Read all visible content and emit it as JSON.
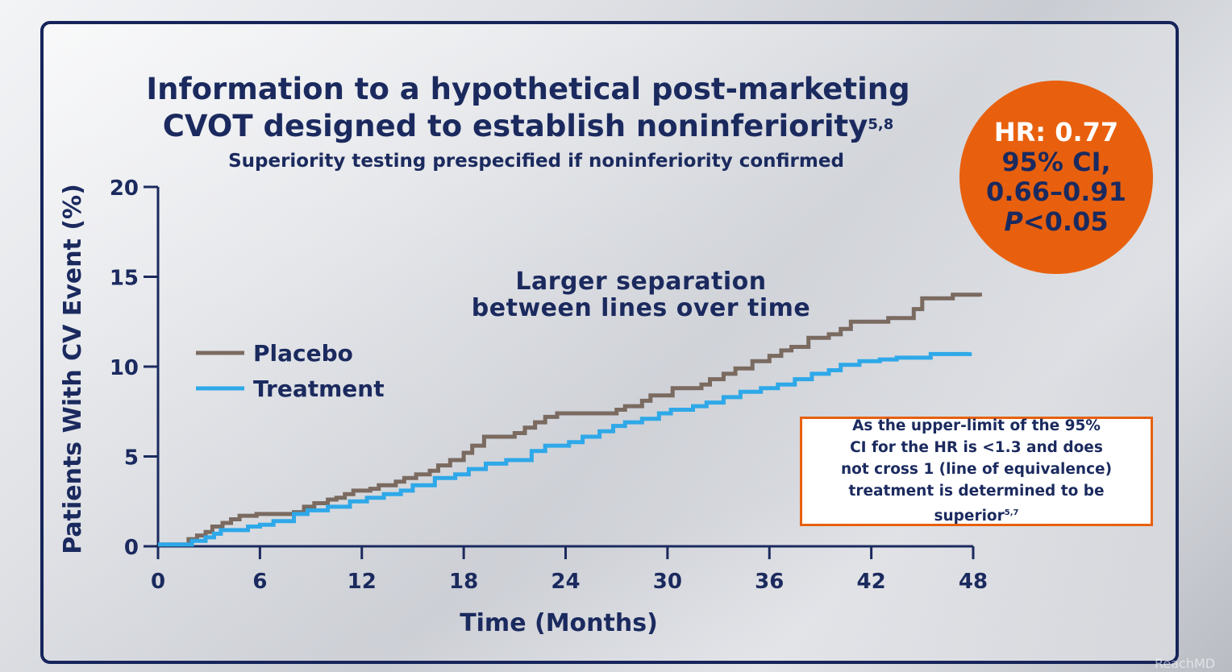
{
  "title_line1": "Information to a hypothetical post-marketing",
  "title_line2": "CVOT designed to establish noninferiority",
  "title_sup": "5,8",
  "subtitle": "Superiority testing prespecified if noninferiority confirmed",
  "annotation_line1": "Larger separation",
  "annotation_line2": "between lines over time",
  "hr_badge": {
    "hr": "HR: 0.77",
    "ci_label": "95% CI,",
    "ci_range": "0.66–0.91",
    "p_letter": "P",
    "p_value": "<0.05"
  },
  "note_box": {
    "line1": "As the upper-limit of the 95%",
    "line2": "CI for the HR is <1.3 and does",
    "line3": "not cross 1 (line of equivalence)",
    "line4": "treatment is determined to be superior",
    "sup": "5,7"
  },
  "watermark": "ReachMD",
  "colors": {
    "navy": "#1b2a5e",
    "placebo": "#7a6a60",
    "treatment": "#2ea8e8",
    "accent_orange": "#e8600e"
  },
  "chart_data": {
    "type": "line",
    "xlabel": "Time (Months)",
    "ylabel": "Patients With CV Event (%)",
    "xlim": [
      0,
      48
    ],
    "ylim": [
      0,
      20
    ],
    "x_ticks": [
      0,
      6,
      12,
      18,
      24,
      30,
      36,
      42,
      48
    ],
    "y_ticks": [
      0,
      5,
      10,
      15,
      20
    ],
    "legend_position": "left-middle",
    "series": [
      {
        "name": "Placebo",
        "color": "#7a6a60",
        "points": [
          [
            0,
            0.1
          ],
          [
            1.5,
            0.1
          ],
          [
            1.8,
            0.4
          ],
          [
            2.3,
            0.6
          ],
          [
            2.8,
            0.8
          ],
          [
            3.2,
            1.1
          ],
          [
            3.8,
            1.3
          ],
          [
            4.3,
            1.5
          ],
          [
            4.8,
            1.7
          ],
          [
            5.8,
            1.8
          ],
          [
            7.0,
            1.8
          ],
          [
            8.0,
            1.9
          ],
          [
            8.6,
            2.2
          ],
          [
            9.2,
            2.4
          ],
          [
            10.0,
            2.6
          ],
          [
            10.5,
            2.7
          ],
          [
            11.0,
            2.9
          ],
          [
            11.5,
            3.1
          ],
          [
            12.5,
            3.2
          ],
          [
            13.0,
            3.4
          ],
          [
            14.0,
            3.6
          ],
          [
            14.5,
            3.8
          ],
          [
            15.2,
            4.0
          ],
          [
            16.0,
            4.2
          ],
          [
            16.5,
            4.5
          ],
          [
            17.2,
            4.8
          ],
          [
            18.0,
            5.2
          ],
          [
            18.5,
            5.6
          ],
          [
            19.2,
            6.1
          ],
          [
            21.0,
            6.3
          ],
          [
            21.6,
            6.6
          ],
          [
            22.2,
            6.9
          ],
          [
            22.8,
            7.2
          ],
          [
            23.5,
            7.4
          ],
          [
            26.5,
            7.4
          ],
          [
            27.0,
            7.6
          ],
          [
            27.5,
            7.8
          ],
          [
            28.5,
            8.1
          ],
          [
            29.0,
            8.4
          ],
          [
            30.3,
            8.8
          ],
          [
            32.0,
            9.0
          ],
          [
            32.5,
            9.3
          ],
          [
            33.3,
            9.6
          ],
          [
            34.0,
            9.9
          ],
          [
            35.0,
            10.3
          ],
          [
            36.0,
            10.6
          ],
          [
            36.7,
            10.9
          ],
          [
            37.3,
            11.1
          ],
          [
            38.3,
            11.6
          ],
          [
            39.5,
            11.8
          ],
          [
            40.2,
            12.1
          ],
          [
            40.8,
            12.5
          ],
          [
            43.0,
            12.7
          ],
          [
            44.5,
            13.2
          ],
          [
            45.0,
            13.8
          ],
          [
            46.8,
            14.0
          ],
          [
            48.4,
            13.9
          ]
        ]
      },
      {
        "name": "Treatment",
        "color": "#2ea8e8",
        "points": [
          [
            0,
            0.1
          ],
          [
            1.6,
            0.1
          ],
          [
            2.0,
            0.3
          ],
          [
            2.8,
            0.5
          ],
          [
            3.3,
            0.7
          ],
          [
            3.7,
            0.9
          ],
          [
            5.3,
            1.1
          ],
          [
            6.0,
            1.2
          ],
          [
            6.8,
            1.4
          ],
          [
            8.0,
            1.8
          ],
          [
            8.8,
            2.0
          ],
          [
            9.5,
            2.0
          ],
          [
            10.0,
            2.2
          ],
          [
            11.3,
            2.5
          ],
          [
            12.3,
            2.7
          ],
          [
            13.3,
            2.9
          ],
          [
            14.3,
            3.1
          ],
          [
            15.0,
            3.4
          ],
          [
            16.3,
            3.8
          ],
          [
            17.5,
            4.0
          ],
          [
            18.3,
            4.3
          ],
          [
            19.3,
            4.6
          ],
          [
            20.5,
            4.8
          ],
          [
            22.0,
            5.3
          ],
          [
            22.8,
            5.6
          ],
          [
            24.2,
            5.8
          ],
          [
            25.0,
            6.1
          ],
          [
            26.0,
            6.4
          ],
          [
            26.8,
            6.7
          ],
          [
            27.5,
            6.9
          ],
          [
            28.5,
            7.1
          ],
          [
            29.5,
            7.4
          ],
          [
            30.2,
            7.6
          ],
          [
            31.5,
            7.8
          ],
          [
            32.3,
            8.0
          ],
          [
            33.3,
            8.3
          ],
          [
            34.3,
            8.6
          ],
          [
            35.5,
            8.8
          ],
          [
            36.5,
            9.0
          ],
          [
            37.5,
            9.3
          ],
          [
            38.5,
            9.6
          ],
          [
            39.5,
            9.8
          ],
          [
            40.2,
            10.1
          ],
          [
            41.3,
            10.3
          ],
          [
            42.5,
            10.4
          ],
          [
            43.5,
            10.5
          ],
          [
            45.5,
            10.7
          ],
          [
            47.8,
            10.8
          ]
        ]
      }
    ]
  }
}
